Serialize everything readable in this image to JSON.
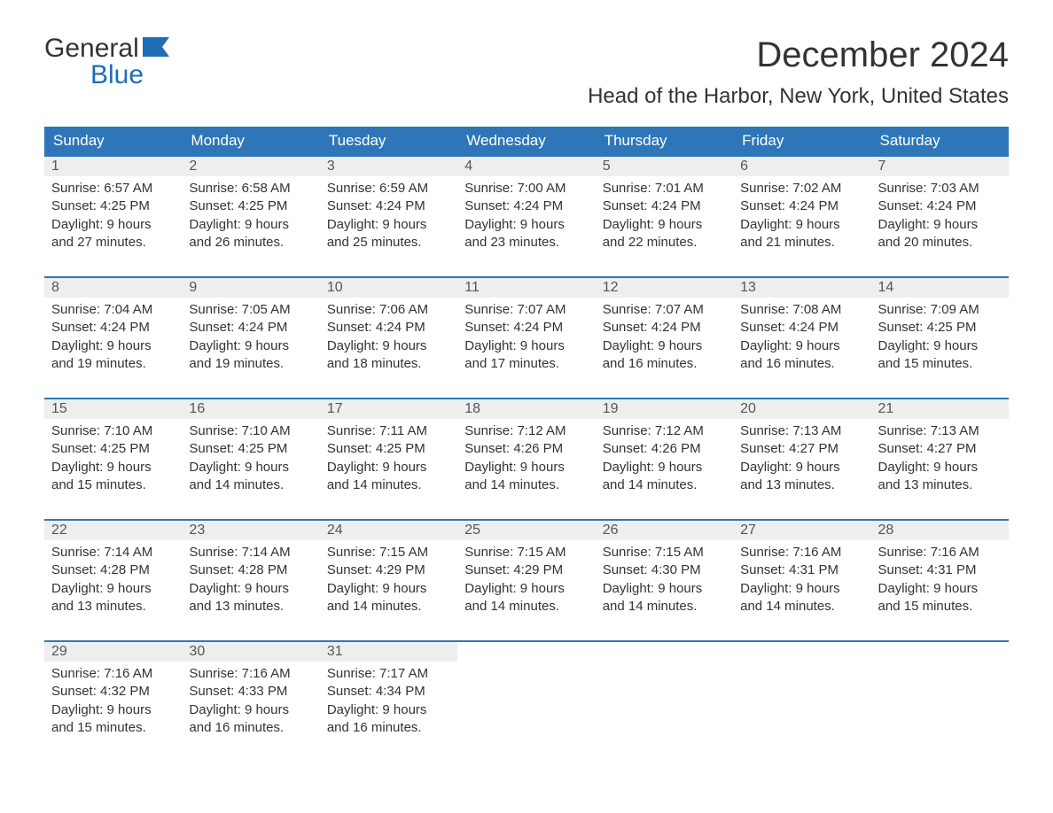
{
  "logo": {
    "word1": "General",
    "word2": "Blue"
  },
  "title": "December 2024",
  "location": "Head of the Harbor, New York, United States",
  "colors": {
    "header_bg": "#2f76b8",
    "header_text": "#ffffff",
    "daynum_bg": "#eeeeee",
    "border_top": "#2f76b8",
    "body_text": "#333333",
    "logo_blue": "#1f6db5",
    "page_bg": "#ffffff"
  },
  "fonts": {
    "title_size_pt": 30,
    "location_size_pt": 18,
    "header_size_pt": 13,
    "body_size_pt": 11
  },
  "layout": {
    "columns": 7,
    "weeks": 5,
    "aspect_ratio": "1188x918"
  },
  "day_headers": [
    "Sunday",
    "Monday",
    "Tuesday",
    "Wednesday",
    "Thursday",
    "Friday",
    "Saturday"
  ],
  "weeks": [
    [
      {
        "num": "1",
        "sunrise": "6:57 AM",
        "sunset": "4:25 PM",
        "dl1": "9 hours",
        "dl2": "and 27 minutes."
      },
      {
        "num": "2",
        "sunrise": "6:58 AM",
        "sunset": "4:25 PM",
        "dl1": "9 hours",
        "dl2": "and 26 minutes."
      },
      {
        "num": "3",
        "sunrise": "6:59 AM",
        "sunset": "4:24 PM",
        "dl1": "9 hours",
        "dl2": "and 25 minutes."
      },
      {
        "num": "4",
        "sunrise": "7:00 AM",
        "sunset": "4:24 PM",
        "dl1": "9 hours",
        "dl2": "and 23 minutes."
      },
      {
        "num": "5",
        "sunrise": "7:01 AM",
        "sunset": "4:24 PM",
        "dl1": "9 hours",
        "dl2": "and 22 minutes."
      },
      {
        "num": "6",
        "sunrise": "7:02 AM",
        "sunset": "4:24 PM",
        "dl1": "9 hours",
        "dl2": "and 21 minutes."
      },
      {
        "num": "7",
        "sunrise": "7:03 AM",
        "sunset": "4:24 PM",
        "dl1": "9 hours",
        "dl2": "and 20 minutes."
      }
    ],
    [
      {
        "num": "8",
        "sunrise": "7:04 AM",
        "sunset": "4:24 PM",
        "dl1": "9 hours",
        "dl2": "and 19 minutes."
      },
      {
        "num": "9",
        "sunrise": "7:05 AM",
        "sunset": "4:24 PM",
        "dl1": "9 hours",
        "dl2": "and 19 minutes."
      },
      {
        "num": "10",
        "sunrise": "7:06 AM",
        "sunset": "4:24 PM",
        "dl1": "9 hours",
        "dl2": "and 18 minutes."
      },
      {
        "num": "11",
        "sunrise": "7:07 AM",
        "sunset": "4:24 PM",
        "dl1": "9 hours",
        "dl2": "and 17 minutes."
      },
      {
        "num": "12",
        "sunrise": "7:07 AM",
        "sunset": "4:24 PM",
        "dl1": "9 hours",
        "dl2": "and 16 minutes."
      },
      {
        "num": "13",
        "sunrise": "7:08 AM",
        "sunset": "4:24 PM",
        "dl1": "9 hours",
        "dl2": "and 16 minutes."
      },
      {
        "num": "14",
        "sunrise": "7:09 AM",
        "sunset": "4:25 PM",
        "dl1": "9 hours",
        "dl2": "and 15 minutes."
      }
    ],
    [
      {
        "num": "15",
        "sunrise": "7:10 AM",
        "sunset": "4:25 PM",
        "dl1": "9 hours",
        "dl2": "and 15 minutes."
      },
      {
        "num": "16",
        "sunrise": "7:10 AM",
        "sunset": "4:25 PM",
        "dl1": "9 hours",
        "dl2": "and 14 minutes."
      },
      {
        "num": "17",
        "sunrise": "7:11 AM",
        "sunset": "4:25 PM",
        "dl1": "9 hours",
        "dl2": "and 14 minutes."
      },
      {
        "num": "18",
        "sunrise": "7:12 AM",
        "sunset": "4:26 PM",
        "dl1": "9 hours",
        "dl2": "and 14 minutes."
      },
      {
        "num": "19",
        "sunrise": "7:12 AM",
        "sunset": "4:26 PM",
        "dl1": "9 hours",
        "dl2": "and 14 minutes."
      },
      {
        "num": "20",
        "sunrise": "7:13 AM",
        "sunset": "4:27 PM",
        "dl1": "9 hours",
        "dl2": "and 13 minutes."
      },
      {
        "num": "21",
        "sunrise": "7:13 AM",
        "sunset": "4:27 PM",
        "dl1": "9 hours",
        "dl2": "and 13 minutes."
      }
    ],
    [
      {
        "num": "22",
        "sunrise": "7:14 AM",
        "sunset": "4:28 PM",
        "dl1": "9 hours",
        "dl2": "and 13 minutes."
      },
      {
        "num": "23",
        "sunrise": "7:14 AM",
        "sunset": "4:28 PM",
        "dl1": "9 hours",
        "dl2": "and 13 minutes."
      },
      {
        "num": "24",
        "sunrise": "7:15 AM",
        "sunset": "4:29 PM",
        "dl1": "9 hours",
        "dl2": "and 14 minutes."
      },
      {
        "num": "25",
        "sunrise": "7:15 AM",
        "sunset": "4:29 PM",
        "dl1": "9 hours",
        "dl2": "and 14 minutes."
      },
      {
        "num": "26",
        "sunrise": "7:15 AM",
        "sunset": "4:30 PM",
        "dl1": "9 hours",
        "dl2": "and 14 minutes."
      },
      {
        "num": "27",
        "sunrise": "7:16 AM",
        "sunset": "4:31 PM",
        "dl1": "9 hours",
        "dl2": "and 14 minutes."
      },
      {
        "num": "28",
        "sunrise": "7:16 AM",
        "sunset": "4:31 PM",
        "dl1": "9 hours",
        "dl2": "and 15 minutes."
      }
    ],
    [
      {
        "num": "29",
        "sunrise": "7:16 AM",
        "sunset": "4:32 PM",
        "dl1": "9 hours",
        "dl2": "and 15 minutes."
      },
      {
        "num": "30",
        "sunrise": "7:16 AM",
        "sunset": "4:33 PM",
        "dl1": "9 hours",
        "dl2": "and 16 minutes."
      },
      {
        "num": "31",
        "sunrise": "7:17 AM",
        "sunset": "4:34 PM",
        "dl1": "9 hours",
        "dl2": "and 16 minutes."
      },
      null,
      null,
      null,
      null
    ]
  ],
  "labels": {
    "sunrise_prefix": "Sunrise: ",
    "sunset_prefix": "Sunset: ",
    "daylight_prefix": "Daylight: "
  }
}
